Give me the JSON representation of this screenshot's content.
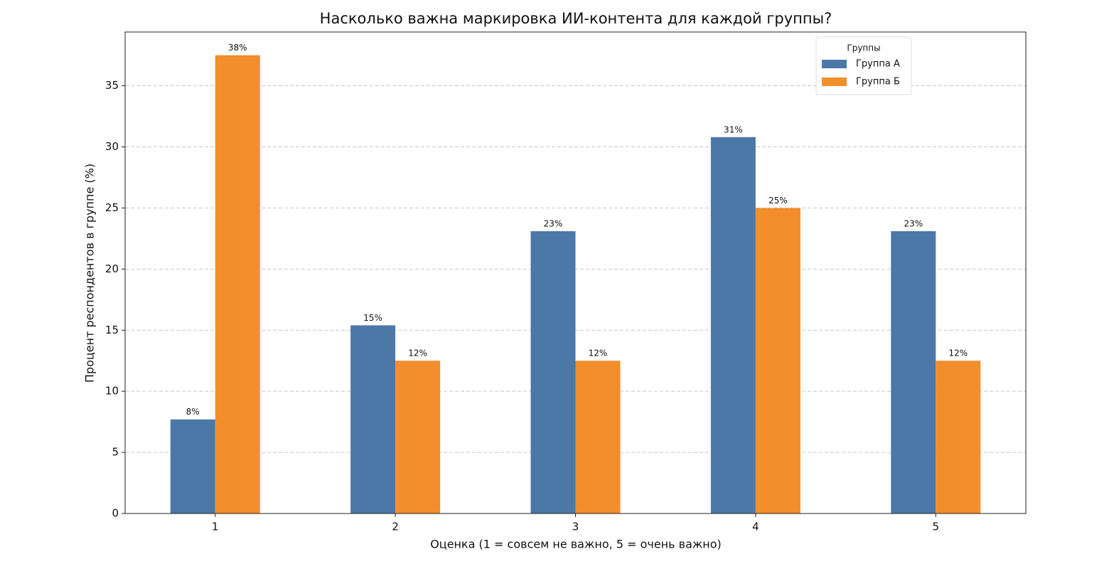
{
  "chart_data": {
    "type": "bar",
    "title": "Насколько важна маркировка ИИ-контента для каждой группы?",
    "xlabel": "Оценка (1 = совсем не важно, 5 = очень важно)",
    "ylabel": "Процент респондентов в группе (%)",
    "categories": [
      "1",
      "2",
      "3",
      "4",
      "5"
    ],
    "series": [
      {
        "name": "Группа А",
        "color": "#4c78a8",
        "values": [
          7.7,
          15.4,
          23.1,
          30.8,
          23.1
        ],
        "value_labels": [
          "8%",
          "15%",
          "23%",
          "31%",
          "23%"
        ]
      },
      {
        "name": "Группа Б",
        "color": "#f28e2b",
        "values": [
          37.5,
          12.5,
          12.5,
          25,
          12.5
        ],
        "value_labels": [
          "38%",
          "12%",
          "12%",
          "25%",
          "12%"
        ]
      }
    ],
    "ylim": [
      0,
      39.4
    ],
    "yticks": [
      0,
      5,
      10,
      15,
      20,
      25,
      30,
      35
    ],
    "grid": true,
    "legend_title": "Группы",
    "legend": "upper right"
  }
}
